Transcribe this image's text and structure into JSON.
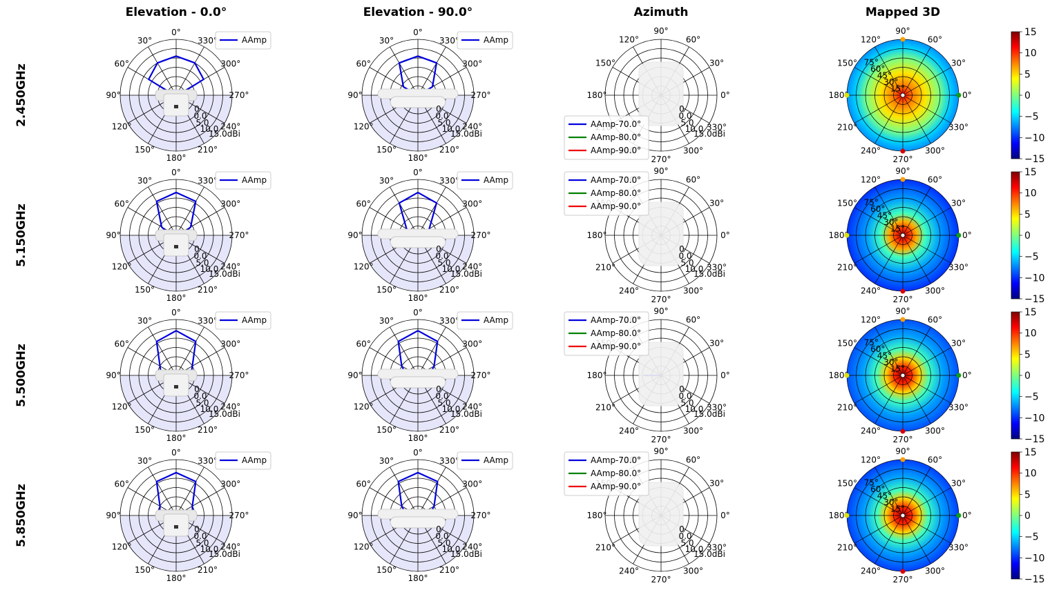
{
  "column_titles": [
    "Elevation - 0.0°",
    "Elevation - 90.0°",
    "Azimuth",
    "Mapped 3D"
  ],
  "row_titles": [
    "2.450GHz",
    "5.150GHz",
    "5.500GHz",
    "5.850GHz"
  ],
  "elevation_angle_labels": [
    "0°",
    "30°",
    "60°",
    "90°",
    "120°",
    "150°",
    "180°",
    "210°",
    "240°",
    "270°",
    "300°",
    "330°"
  ],
  "azimuth_angle_labels": [
    "0°",
    "30°",
    "60°",
    "90°",
    "120°",
    "150°",
    "180°",
    "210°",
    "240°",
    "270°",
    "300°",
    "330°"
  ],
  "radial_tick_labels": [
    "0.0",
    "5.0",
    "10.0",
    "15.0dBi"
  ],
  "radial_minor_label": "0",
  "mapped_angle_labels": [
    "15°",
    "30°",
    "45°",
    "60°",
    "75°"
  ],
  "colorbar_ticks": [
    "15",
    "10",
    "5",
    "0",
    "−5",
    "−10",
    "−15"
  ],
  "colors": {
    "trace_primary": "#0000dd",
    "trace_70": "#0000dd",
    "trace_80": "#008000",
    "trace_90": "#ee0000",
    "lower_half_shade": "#e6e6fa",
    "device_image": "#e8e8e8"
  },
  "chart_data": {
    "type": "polar",
    "frequencies": [
      "2.450GHz",
      "5.150GHz",
      "5.500GHz",
      "5.850GHz"
    ],
    "radial_axis": {
      "min_dbi": -15,
      "max_dbi": 15,
      "ticks": [
        0,
        5,
        10,
        15
      ],
      "unit": "dBi"
    },
    "elevation_0": {
      "legend": [
        "AAmp"
      ],
      "angles_deg": [
        0,
        30,
        60,
        90,
        120,
        150,
        180,
        210,
        240,
        270,
        300,
        330
      ],
      "series": [
        {
          "name": "AAmp",
          "freq": "2.450GHz",
          "values_dbi": [
            6,
            5,
            2,
            -14,
            -15,
            -15,
            -15,
            -15,
            -15,
            -14,
            2,
            5
          ]
        },
        {
          "name": "AAmp",
          "freq": "5.150GHz",
          "values_dbi": [
            8,
            6,
            -6,
            -12,
            -15,
            -15,
            -15,
            -15,
            -15,
            -12,
            -6,
            6
          ]
        },
        {
          "name": "AAmp",
          "freq": "5.500GHz",
          "values_dbi": [
            9,
            6,
            -5,
            -7,
            -15,
            -15,
            -15,
            -15,
            -15,
            -7,
            -5,
            6
          ]
        },
        {
          "name": "AAmp",
          "freq": "5.850GHz",
          "values_dbi": [
            8,
            6,
            -5,
            -6,
            -15,
            -15,
            -15,
            -15,
            -15,
            -6,
            -5,
            6
          ]
        }
      ]
    },
    "elevation_90": {
      "legend": [
        "AAmp"
      ],
      "angles_deg": [
        0,
        30,
        60,
        90,
        120,
        150,
        180,
        210,
        240,
        270,
        300,
        330
      ],
      "series": [
        {
          "name": "AAmp",
          "freq": "2.450GHz",
          "values_dbi": [
            6,
            5,
            -6,
            -15,
            -15,
            -15,
            -15,
            -15,
            -15,
            -15,
            -6,
            5
          ]
        },
        {
          "name": "AAmp",
          "freq": "5.150GHz",
          "values_dbi": [
            8,
            5,
            -8,
            -12,
            -15,
            -15,
            -15,
            -15,
            -15,
            -12,
            -8,
            5
          ]
        },
        {
          "name": "AAmp",
          "freq": "5.500GHz",
          "values_dbi": [
            9,
            6,
            -5,
            -9,
            -15,
            -15,
            -15,
            -15,
            -15,
            -9,
            -5,
            6
          ]
        },
        {
          "name": "AAmp",
          "freq": "5.850GHz",
          "values_dbi": [
            8,
            6,
            -5,
            -9,
            -15,
            -15,
            -15,
            -15,
            -15,
            -9,
            -5,
            6
          ]
        }
      ]
    },
    "azimuth": {
      "legend": [
        "AAmp-70.0°",
        "AAmp-80.0°",
        "AAmp-90.0°"
      ],
      "angles_deg": [
        0,
        30,
        60,
        90,
        120,
        150,
        180,
        210,
        240,
        270,
        300,
        330
      ],
      "series": [
        {
          "name": "AAmp-70.0°",
          "freq": "5.500GHz",
          "values_dbi": [
            -15,
            -15,
            -15,
            -15,
            -15,
            -15,
            -6,
            -15,
            -15,
            -15,
            -15,
            -15
          ]
        }
      ]
    },
    "mapped_3d": {
      "type": "heatmap",
      "colorbar_range": [
        -15,
        15
      ],
      "colormap": "jet",
      "peak_dbi": [
        6,
        8,
        9,
        8
      ]
    }
  }
}
